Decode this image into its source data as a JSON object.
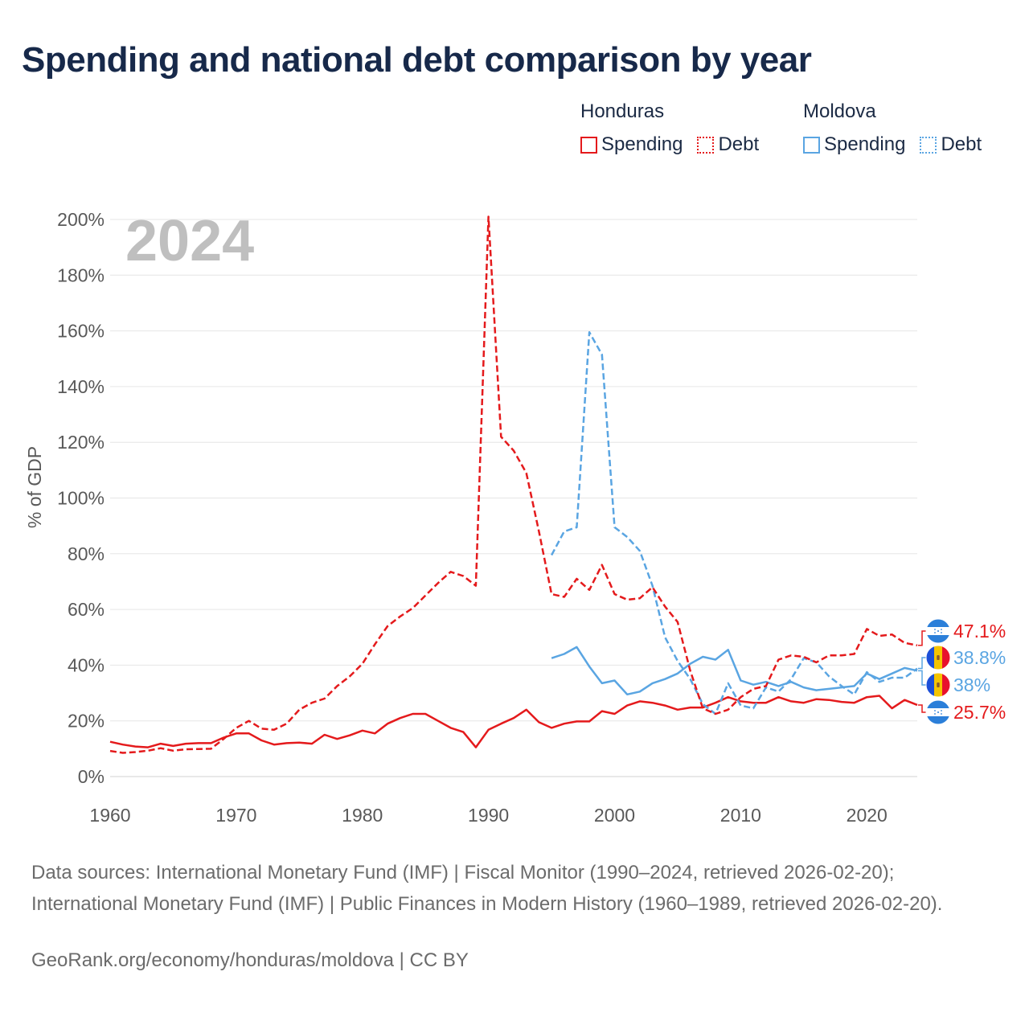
{
  "title": "Spending and national debt comparison by year",
  "legend": {
    "honduras": {
      "country": "Honduras",
      "spending": "Spending",
      "debt": "Debt"
    },
    "moldova": {
      "country": "Moldova",
      "spending": "Spending",
      "debt": "Debt"
    }
  },
  "colors": {
    "honduras": "#e41a1c",
    "moldova": "#5aa5e2",
    "grid": "#e6e6e6",
    "tick": "#595959",
    "year": "#bfbfbf"
  },
  "chart_data": {
    "type": "line",
    "year_label": "2024",
    "ylabel": "% of GDP",
    "xlim": [
      1960,
      2024
    ],
    "ylim": [
      0,
      200
    ],
    "xticks": [
      1960,
      1970,
      1980,
      1990,
      2000,
      2010,
      2020
    ],
    "xtick_labels": [
      "1960",
      "1970",
      "1980",
      "1990",
      "2000",
      "2010",
      "2020"
    ],
    "yticks": [
      0,
      20,
      40,
      60,
      80,
      100,
      120,
      140,
      160,
      180,
      200
    ],
    "ytick_labels": [
      "0%",
      "20%",
      "40%",
      "60%",
      "80%",
      "100%",
      "120%",
      "140%",
      "160%",
      "180%",
      "200%"
    ],
    "series": [
      {
        "name": "Honduras Debt",
        "country": "honduras",
        "style": "dashed",
        "start": 1960,
        "values": [
          9.2,
          8.5,
          8.8,
          9.3,
          10.2,
          9.3,
          9.8,
          9.9,
          10.0,
          13.5,
          17.5,
          20.0,
          17.2,
          16.8,
          19.0,
          24.0,
          26.5,
          28.0,
          32.5,
          36.0,
          40.5,
          47.5,
          54.0,
          57.5,
          60.5,
          65.0,
          69.5,
          73.5,
          72.0,
          68.5,
          201.0,
          122.0,
          117.0,
          109.0,
          88.0,
          65.5,
          64.5,
          71.0,
          67.0,
          76.0,
          65.5,
          63.5,
          64.0,
          68.0,
          61.0,
          55.5,
          38.0,
          24.5,
          22.5,
          24.0,
          28.5,
          31.5,
          32.5,
          42.0,
          43.5,
          43.0,
          41.0,
          43.5,
          43.5,
          44.0,
          53.0,
          50.5,
          51.0,
          48.0,
          47.1
        ]
      },
      {
        "name": "Honduras Spending",
        "country": "honduras",
        "style": "solid",
        "start": 1960,
        "values": [
          12.5,
          11.5,
          10.8,
          10.5,
          11.8,
          11.0,
          11.8,
          12.0,
          12.0,
          14.0,
          15.5,
          15.5,
          13.0,
          11.5,
          12.0,
          12.2,
          11.8,
          15.0,
          13.5,
          14.8,
          16.5,
          15.5,
          19.0,
          21.0,
          22.5,
          22.5,
          20.0,
          17.5,
          16.0,
          10.5,
          16.8,
          19.0,
          21.0,
          24.0,
          19.5,
          17.5,
          19.0,
          19.8,
          19.8,
          23.5,
          22.5,
          25.5,
          27.0,
          26.5,
          25.5,
          24.0,
          24.8,
          24.8,
          26.5,
          28.5,
          27.0,
          26.5,
          26.5,
          28.5,
          27.0,
          26.5,
          27.8,
          27.5,
          26.8,
          26.5,
          28.5,
          29.0,
          24.5,
          27.5,
          25.7
        ]
      },
      {
        "name": "Moldova Debt",
        "country": "moldova",
        "style": "dashed",
        "start": 1995,
        "values": [
          79.5,
          88.0,
          89.5,
          159.5,
          151.5,
          89.5,
          86.0,
          81.0,
          68.5,
          50.0,
          41.5,
          35.0,
          26.0,
          22.5,
          33.5,
          25.5,
          24.5,
          32.0,
          30.5,
          35.0,
          42.5,
          41.0,
          36.0,
          32.5,
          29.5,
          37.5,
          34.0,
          35.5,
          35.5,
          38.8
        ]
      },
      {
        "name": "Moldova Spending",
        "country": "moldova",
        "style": "solid",
        "start": 1995,
        "values": [
          42.5,
          44.0,
          46.5,
          39.5,
          33.5,
          34.5,
          29.5,
          30.5,
          33.5,
          35.0,
          37.0,
          40.5,
          43.0,
          42.0,
          45.5,
          34.5,
          33.0,
          34.0,
          32.5,
          34.0,
          32.0,
          31.0,
          31.5,
          32.0,
          32.5,
          37.0,
          35.0,
          37.0,
          39.0,
          38.0
        ]
      }
    ],
    "end_labels": [
      {
        "series": "Honduras Debt",
        "value": 47.1,
        "text": "47.1%",
        "country": "honduras"
      },
      {
        "series": "Moldova Debt",
        "value": 38.8,
        "text": "38.8%",
        "country": "moldova"
      },
      {
        "series": "Moldova Spending",
        "value": 38.0,
        "text": "38%",
        "country": "moldova"
      },
      {
        "series": "Honduras Spending",
        "value": 25.7,
        "text": "25.7%",
        "country": "honduras"
      }
    ]
  },
  "footer": {
    "sources": "Data sources: International Monetary Fund (IMF) | Fiscal Monitor (1990–2024, retrieved 2026-02-20); International Monetary Fund (IMF) | Public Finances in Modern History (1960–1989, retrieved 2026-02-20).",
    "credit": "GeoRank.org/economy/honduras/moldova | CC BY"
  }
}
